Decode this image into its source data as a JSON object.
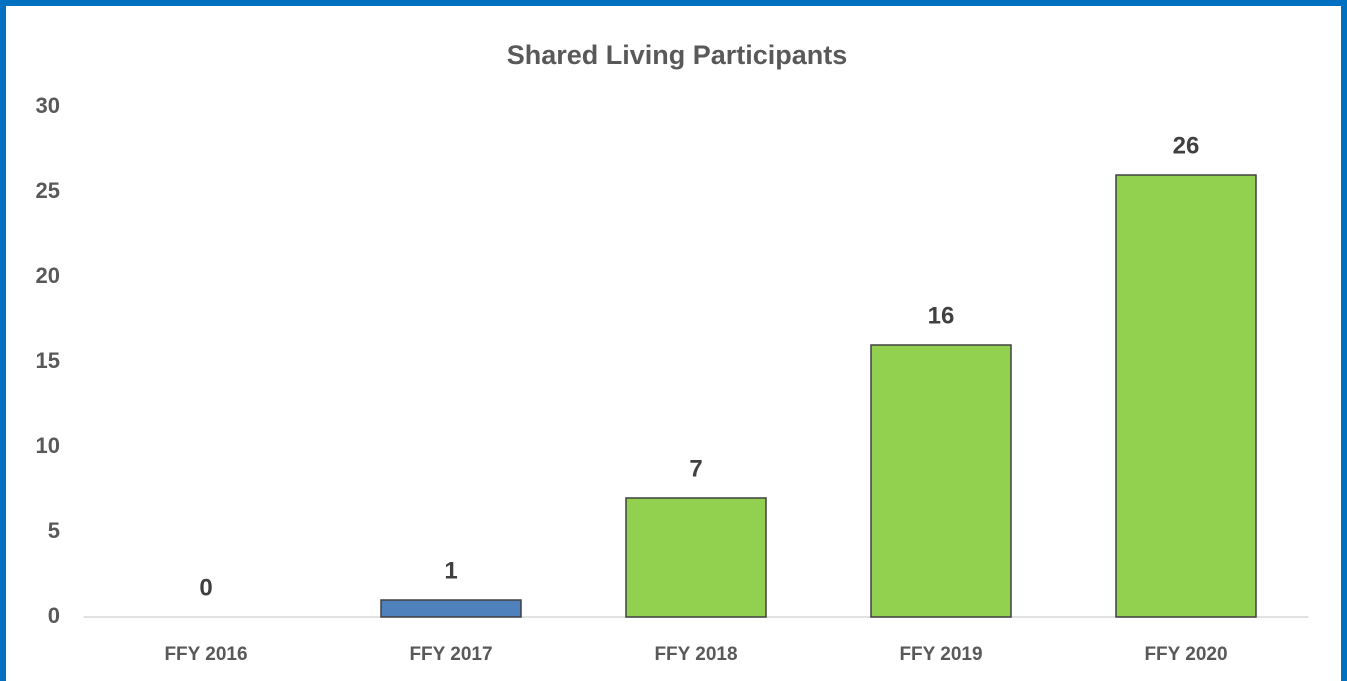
{
  "chart_data": {
    "type": "bar",
    "title": "Shared Living Participants",
    "categories": [
      "FFY 2016",
      "FFY 2017",
      "FFY 2018",
      "FFY 2019",
      "FFY 2020"
    ],
    "values": [
      0,
      1,
      7,
      16,
      26
    ],
    "colors": [
      "#92d050",
      "#4f81bd",
      "#92d050",
      "#92d050",
      "#92d050"
    ],
    "ylim": [
      0,
      30
    ],
    "yticks": [
      0,
      5,
      10,
      15,
      20,
      25,
      30
    ],
    "grid": false,
    "data_labels": true
  }
}
